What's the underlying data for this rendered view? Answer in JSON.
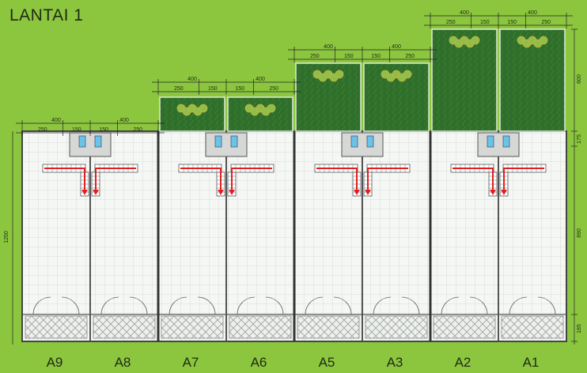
{
  "title": "LANTAI 1",
  "units": [
    "A9",
    "A8",
    "A7",
    "A6",
    "A5",
    "A3",
    "A2",
    "A1"
  ],
  "dimensions": {
    "unit_width": "400",
    "half_a": "250",
    "half_b": "150",
    "total_depth": "1250",
    "front_yard": "600",
    "zone_175": "175",
    "zone_890": "890",
    "zone_185": "185"
  },
  "colors": {
    "background": "#8cc63f",
    "garden": "#2e6b2a",
    "floor": "#f4f6f4",
    "carport": "#e9ece9",
    "wall": "#444444",
    "stair_arrow": "#e02020"
  }
}
